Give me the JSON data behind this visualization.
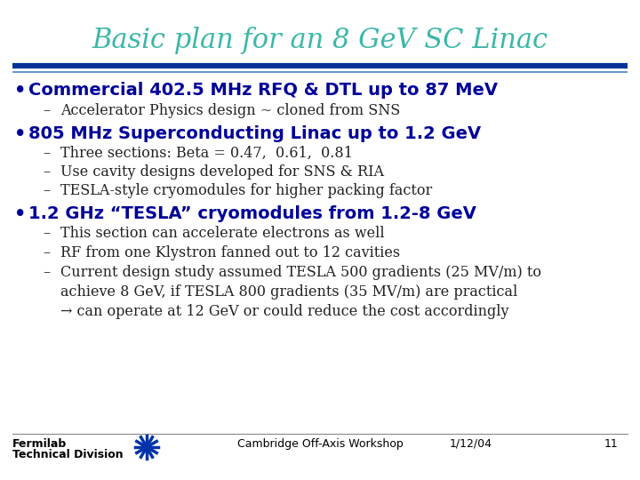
{
  "title": "Basic plan for an 8 GeV SC Linac",
  "title_color": "#3CB8A8",
  "title_fontsize": 22,
  "background_color": "#FFFFFF",
  "divider_color1": "#003399",
  "divider_color2": "#6699CC",
  "bullet_color": "#000099",
  "bullet_fontsize": 14,
  "sub_fontsize": 11.5,
  "footer_fontsize": 9,
  "bullets": [
    {
      "text": "Commercial 402.5 MHz RFQ & DTL up to 87 MeV",
      "subs": [
        "Accelerator Physics design ~ cloned from SNS"
      ]
    },
    {
      "text": "805 MHz Superconducting Linac up to 1.2 GeV",
      "subs": [
        "Three sections: Beta = 0.47,  0.61,  0.81",
        "Use cavity designs developed for SNS & RIA",
        "TESLA-style cryomodules for higher packing factor"
      ]
    },
    {
      "text": "1.2 GHz “TESLA” cryomodules from 1.2-8 GeV",
      "subs": [
        "This section can accelerate electrons as well",
        "RF from one Klystron fanned out to 12 cavities",
        "Current design study assumed TESLA 500 gradients (25 MV/m) to\nachieve 8 GeV, if TESLA 800 gradients (35 MV/m) are practical\n→ can operate at 12 GeV or could reduce the cost accordingly"
      ]
    }
  ],
  "footer_left1": "Fermilab",
  "footer_left2": "Technical Division",
  "footer_center": "Cambridge Off-Axis Workshop",
  "footer_date": "1/12/04",
  "footer_page": "11"
}
